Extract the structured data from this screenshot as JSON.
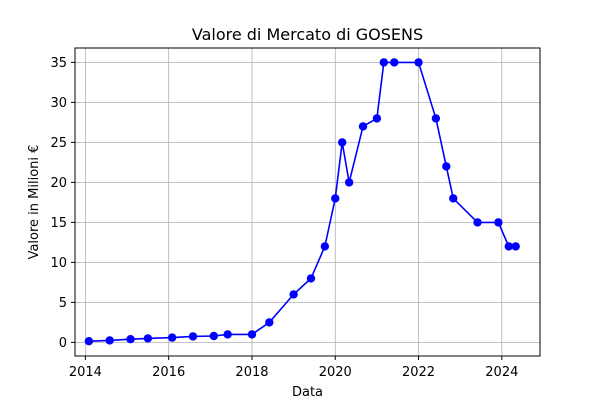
{
  "chart_data": {
    "type": "line",
    "title": "Valore di Mercato di GOSENS",
    "xlabel": "Data",
    "ylabel": "Valore in Milioni €",
    "x_ticks": [
      "2014",
      "2016",
      "2018",
      "2020",
      "2022",
      "2024"
    ],
    "y_ticks": [
      "0",
      "5",
      "10",
      "15",
      "20",
      "25",
      "30",
      "35"
    ],
    "xlim": [
      "2013-10",
      "2024-12"
    ],
    "ylim": [
      -1.7,
      36.8
    ],
    "grid": true,
    "colors": {
      "line": "#0000ff",
      "grid": "#b0b0b0",
      "axes": "#000000"
    },
    "series": [
      {
        "x": [
          "2014-02",
          "2014-08",
          "2015-02",
          "2015-07",
          "2016-02",
          "2016-08",
          "2017-02",
          "2017-06",
          "2018-01",
          "2018-06",
          "2019-01",
          "2019-06",
          "2019-10",
          "2020-01",
          "2020-03",
          "2020-05",
          "2020-09",
          "2021-01",
          "2021-03",
          "2021-06",
          "2022-01",
          "2022-06",
          "2022-09",
          "2022-11",
          "2023-06",
          "2023-12",
          "2024-03",
          "2024-05"
        ],
        "values": [
          0.15,
          0.25,
          0.4,
          0.5,
          0.6,
          0.75,
          0.8,
          1.0,
          1.0,
          2.5,
          6,
          8,
          12,
          18,
          25,
          20,
          27,
          28,
          35,
          35,
          35,
          28,
          22,
          18,
          15,
          15,
          12,
          12
        ]
      }
    ]
  }
}
